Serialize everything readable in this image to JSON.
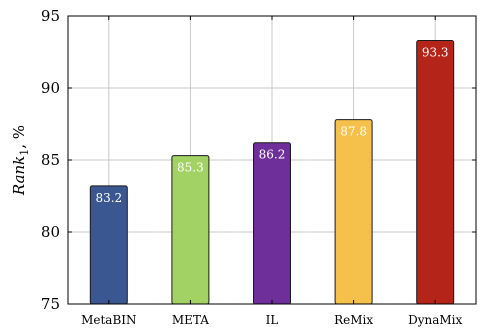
{
  "chart_data": {
    "type": "bar",
    "title": "",
    "xlabel": "",
    "ylabel": {
      "main": "Rank",
      "subscript": "1",
      "suffix": ", %"
    },
    "categories": [
      "MetaBIN",
      "META",
      "IL",
      "ReMix",
      "DynaMix"
    ],
    "values": [
      83.2,
      85.3,
      86.2,
      87.8,
      93.3
    ],
    "data_labels": [
      "83.2",
      "85.3",
      "86.2",
      "87.8",
      "93.3"
    ],
    "colors": [
      "#3b5791",
      "#a2d264",
      "#6e2f9b",
      "#f5c14b",
      "#b42419"
    ],
    "ylim": [
      75,
      95
    ],
    "yticks": [
      75,
      80,
      85,
      90,
      95
    ],
    "ytick_labels": [
      "75",
      "80",
      "85",
      "90",
      "95"
    ],
    "grid": true,
    "legend": "none"
  }
}
